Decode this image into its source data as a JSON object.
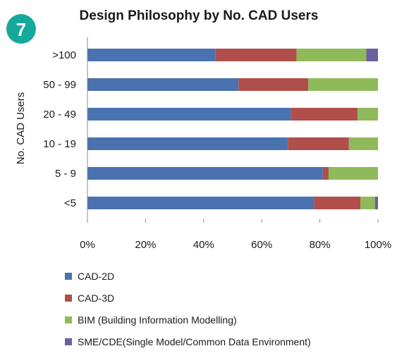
{
  "badge": {
    "label": "7",
    "color": "#16a89a"
  },
  "chart_data": {
    "type": "bar",
    "orientation": "horizontal",
    "stacked": "percent",
    "title": "Design Philosophy by No. CAD Users",
    "xlabel": "",
    "ylabel": "No. CAD Users",
    "xlim": [
      0,
      100
    ],
    "x_ticks": [
      "0%",
      "20%",
      "40%",
      "60%",
      "80%",
      "100%"
    ],
    "categories": [
      ">100",
      "50 - 99",
      "20 - 49",
      "10 - 19",
      "5 - 9",
      "<5"
    ],
    "series": [
      {
        "name": "CAD-2D",
        "color": "#4a72b0",
        "values": [
          44,
          52,
          70,
          69,
          81,
          78
        ]
      },
      {
        "name": "CAD-3D",
        "color": "#b04e4b",
        "values": [
          28,
          24,
          23,
          21,
          2,
          16
        ]
      },
      {
        "name": "BIM (Building Information Modelling)",
        "color": "#8fba5a",
        "values": [
          24,
          24,
          7,
          10,
          17,
          5
        ]
      },
      {
        "name": "SME/CDE(Single Model/Common Data Environment)",
        "color": "#6b5f9e",
        "values": [
          4,
          0,
          0,
          0,
          0,
          1
        ]
      }
    ],
    "grid": false,
    "legend_position": "bottom"
  }
}
